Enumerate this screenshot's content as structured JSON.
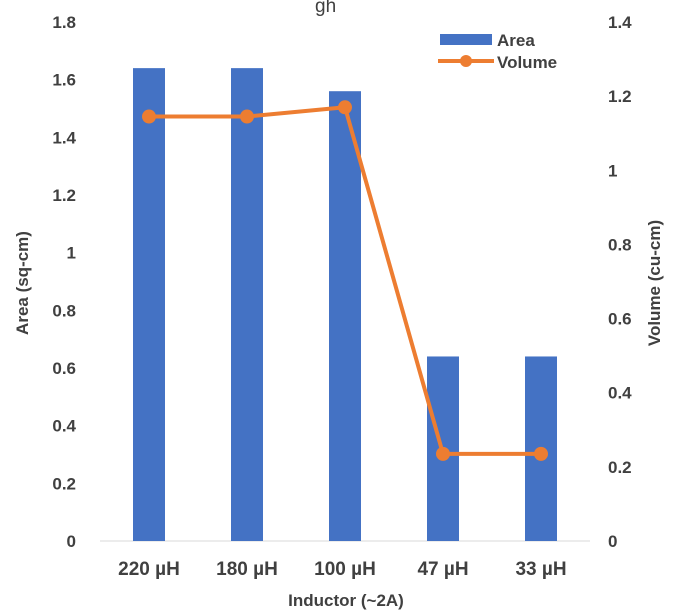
{
  "chart_data": {
    "type": "bar",
    "title": "",
    "title_fragment": "gh",
    "categories": [
      "220 µH",
      "180 µH",
      "100 µH",
      "47 µH",
      "33 µH"
    ],
    "xlabel": "Inductor (~2A)",
    "ylabel": "Area (sq-cm)",
    "y2label": "Volume (cu-cm)",
    "ylim": [
      0,
      1.8
    ],
    "y2lim": [
      0,
      1.4
    ],
    "yticks": [
      "0",
      "0.2",
      "0.4",
      "0.6",
      "0.8",
      "1",
      "1.2",
      "1.4",
      "1.6",
      "1.8"
    ],
    "y2ticks": [
      "0",
      "0.2",
      "0.4",
      "0.6",
      "0.8",
      "1",
      "1.2",
      "1.4"
    ],
    "grid": false,
    "legend_position": "top-right",
    "series": [
      {
        "name": "Area",
        "type": "bar",
        "axis": "left",
        "color": "#4472c4",
        "values": [
          1.64,
          1.64,
          1.56,
          0.64,
          0.64
        ]
      },
      {
        "name": "Volume",
        "type": "line",
        "axis": "right",
        "color": "#ed7d31",
        "values": [
          1.145,
          1.145,
          1.17,
          0.235,
          0.235
        ]
      }
    ]
  }
}
